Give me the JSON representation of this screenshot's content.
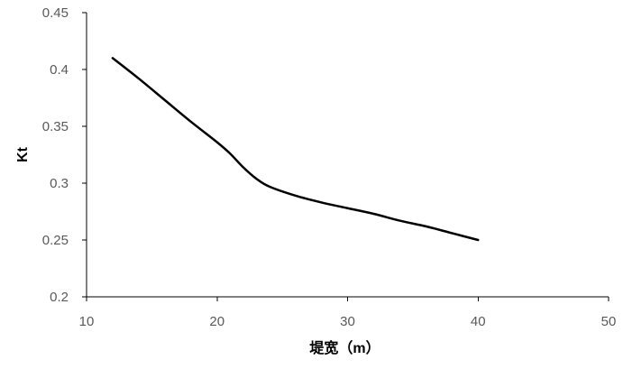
{
  "chart_data": {
    "type": "line",
    "title": "",
    "xlabel": "堤宽（m）",
    "ylabel": "Kt",
    "xlim": [
      10,
      50
    ],
    "ylim": [
      0.2,
      0.45
    ],
    "x_ticks": [
      10,
      20,
      30,
      40,
      50
    ],
    "y_ticks": [
      0.2,
      0.25,
      0.3,
      0.35,
      0.4,
      0.45
    ],
    "x_tick_labels": [
      "10",
      "20",
      "30",
      "40",
      "50"
    ],
    "y_tick_labels": [
      "0.2",
      "0.25",
      "0.3",
      "0.35",
      "0.4",
      "0.45"
    ],
    "grid": false,
    "legend": "none",
    "series": [
      {
        "color": "#000000",
        "x": [
          12,
          14,
          16,
          18,
          20,
          21,
          22,
          23,
          24,
          26,
          28,
          30,
          32,
          34,
          36,
          38,
          40
        ],
        "y": [
          0.41,
          0.392,
          0.373,
          0.354,
          0.336,
          0.326,
          0.314,
          0.304,
          0.297,
          0.289,
          0.283,
          0.278,
          0.273,
          0.267,
          0.262,
          0.256,
          0.25
        ]
      }
    ]
  }
}
